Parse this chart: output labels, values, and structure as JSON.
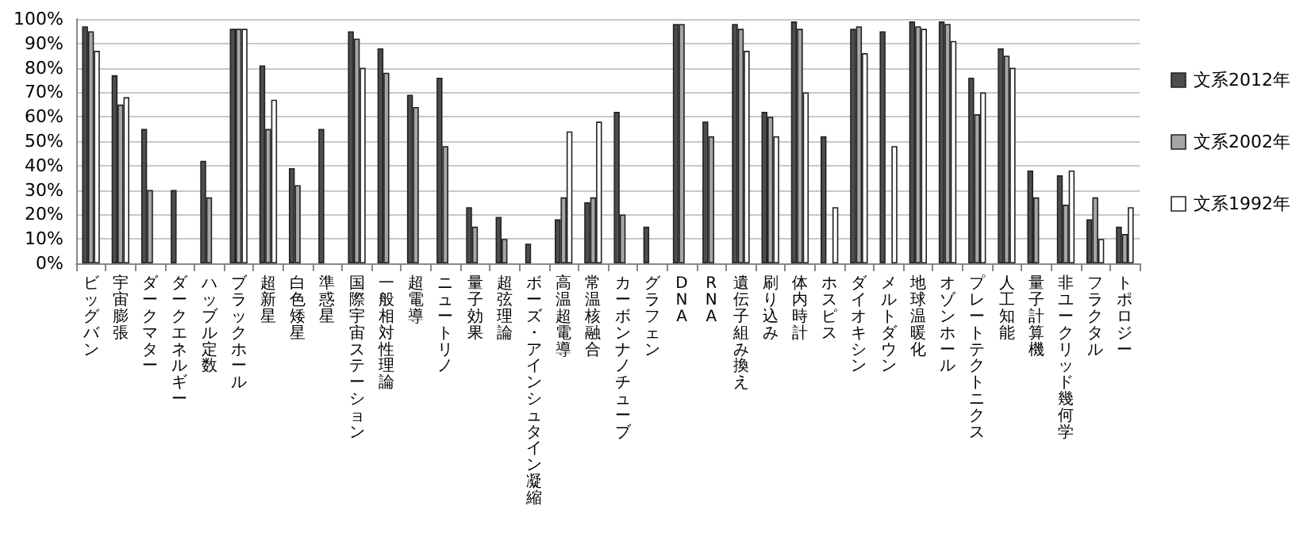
{
  "chart_data": {
    "type": "bar",
    "categories": [
      "ビッグバン",
      "宇宙膨張",
      "ダークマター",
      "ダークエネルギー",
      "ハッブル定数",
      "ブラックホール",
      "超新星",
      "白色矮星",
      "準惑星",
      "国際宇宙ステーション",
      "一般相対性理論",
      "超電導",
      "ニュートリノ",
      "量子効果",
      "超弦理論",
      "ボーズ・アインシュタイン凝縮",
      "高温超電導",
      "常温核融合",
      "カーボンナノチューブ",
      "グラフェン",
      "DNA",
      "RNA",
      "遺伝子組み換え",
      "刷り込み",
      "体内時計",
      "ホスピス",
      "ダイオキシン",
      "メルトダウン",
      "地球温暖化",
      "オゾンホール",
      "プレートテクトニクス",
      "人工知能",
      "量子計算機",
      "非ユークリッド幾何学",
      "フラクタル",
      "トポロジー"
    ],
    "series": [
      {
        "name": "文系2012年",
        "color": "#4d4d4d",
        "values": [
          97,
          77,
          55,
          30,
          42,
          96,
          81,
          39,
          55,
          95,
          88,
          69,
          76,
          23,
          19,
          8,
          18,
          25,
          62,
          15,
          98,
          58,
          98,
          62,
          99,
          52,
          96,
          95,
          99,
          99,
          76,
          88,
          38,
          36,
          18,
          15
        ]
      },
      {
        "name": "文系2002年",
        "color": "#a6a6a6",
        "values": [
          95,
          65,
          30,
          null,
          27,
          96,
          55,
          32,
          null,
          92,
          78,
          64,
          48,
          15,
          10,
          null,
          27,
          27,
          20,
          null,
          98,
          52,
          96,
          60,
          96,
          null,
          97,
          null,
          97,
          98,
          61,
          85,
          27,
          24,
          27,
          12
        ]
      },
      {
        "name": "文系1992年",
        "color": "#ffffff",
        "values": [
          87,
          68,
          null,
          null,
          null,
          96,
          67,
          null,
          null,
          80,
          null,
          null,
          null,
          null,
          null,
          null,
          54,
          58,
          null,
          null,
          null,
          null,
          87,
          52,
          70,
          23,
          86,
          48,
          96,
          91,
          70,
          80,
          null,
          38,
          10,
          23
        ]
      }
    ],
    "ylim": [
      0,
      100
    ],
    "yticks": [
      {
        "value": 0,
        "label": "0%"
      },
      {
        "value": 10,
        "label": "10%"
      },
      {
        "value": 20,
        "label": "20%"
      },
      {
        "value": 30,
        "label": "30%"
      },
      {
        "value": 40,
        "label": "40%"
      },
      {
        "value": 50,
        "label": "50%"
      },
      {
        "value": 60,
        "label": "60%"
      },
      {
        "value": 70,
        "label": "70%"
      },
      {
        "value": 80,
        "label": "80%"
      },
      {
        "value": 90,
        "label": "90%"
      },
      {
        "value": 100,
        "label": "100%"
      }
    ],
    "grid": true,
    "legend": "right"
  }
}
